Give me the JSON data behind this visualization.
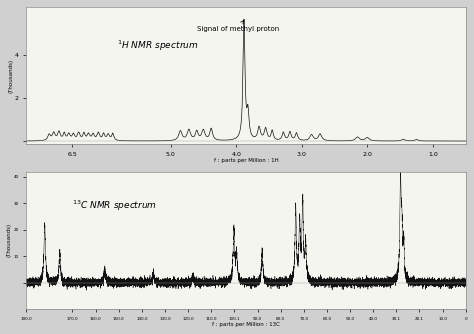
{
  "fig_width": 4.74,
  "fig_height": 3.34,
  "dpi": 100,
  "bg_color": "#d0d0d0",
  "panel1_bg": "#f5f5f0",
  "panel2_bg": "#f5f5f0",
  "panel1_title": "$^{1}$H NMR spectrum",
  "panel1_xlabel": "f : parts per Million : 1H",
  "panel2_title": "$^{13}$C NMR spectrum",
  "panel2_xlabel": "f : parts per Million : 13C",
  "line_color": "#111111",
  "ylabel_1": "(Thousands)",
  "ylabel_2": "(Thousands)",
  "panel1_annotation": "Signal of methyl proton"
}
